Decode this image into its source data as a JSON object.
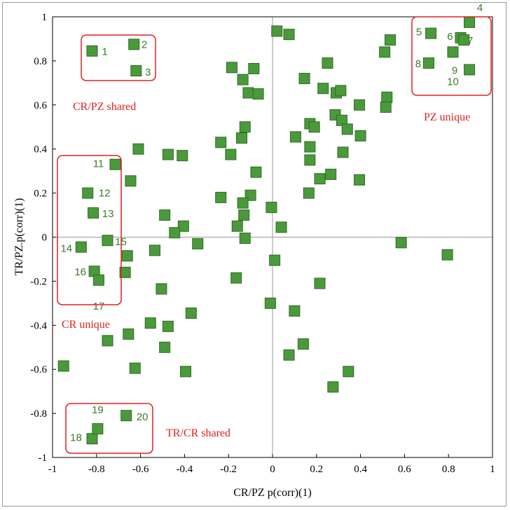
{
  "chart_data": {
    "type": "scatter",
    "title": "",
    "xlabel": "CR/PZ p(corr)(1)",
    "ylabel": "TR/PZ.p(corr)(1)",
    "xlim": [
      -1,
      1
    ],
    "ylim": [
      -1,
      1
    ],
    "x_ticks": [
      "-1",
      "-0.8",
      "-0.6",
      "-0.4",
      "-0.2",
      "0",
      "0.2",
      "0.4",
      "0.6",
      "0.8",
      "1"
    ],
    "y_ticks": [
      "1",
      "0.8",
      "0.6",
      "0.4",
      "0.2",
      "0",
      "-0.2",
      "-0.4",
      "-0.6",
      "-0.8",
      "-1"
    ],
    "marker_color": "#4a9a3c",
    "marker_edge": "#2f6b24",
    "reference_lines": [
      0,
      0
    ],
    "labeled_points": [
      {
        "label": "1",
        "x": -0.82,
        "y": 0.845
      },
      {
        "label": "2",
        "x": -0.63,
        "y": 0.875
      },
      {
        "label": "3",
        "x": -0.62,
        "y": 0.755
      },
      {
        "label": "5",
        "x": 0.72,
        "y": 0.925
      },
      {
        "label": "6",
        "x": 0.855,
        "y": 0.905
      },
      {
        "label": "7",
        "x": 0.87,
        "y": 0.895
      },
      {
        "label": "4",
        "x": 0.895,
        "y": 0.975
      },
      {
        "label": "8",
        "x": 0.71,
        "y": 0.79
      },
      {
        "label": "9",
        "x": 0.895,
        "y": 0.76
      },
      {
        "label": "10",
        "x": 0.82,
        "y": 0.84
      },
      {
        "label": "11",
        "x": -0.715,
        "y": 0.33
      },
      {
        "label": "12",
        "x": -0.84,
        "y": 0.2
      },
      {
        "label": "13",
        "x": -0.815,
        "y": 0.11
      },
      {
        "label": "14",
        "x": -0.87,
        "y": -0.045
      },
      {
        "label": "15",
        "x": -0.75,
        "y": -0.015
      },
      {
        "label": "16",
        "x": -0.81,
        "y": -0.155
      },
      {
        "label": "17",
        "x": -0.79,
        "y": -0.195
      },
      {
        "label": "18",
        "x": -0.82,
        "y": -0.915
      },
      {
        "label": "19",
        "x": -0.795,
        "y": -0.87
      },
      {
        "label": "20",
        "x": -0.665,
        "y": -0.81
      }
    ],
    "other_points": [
      {
        "x": 0.02,
        "y": 0.935
      },
      {
        "x": 0.075,
        "y": 0.92
      },
      {
        "x": 0.51,
        "y": 0.84
      },
      {
        "x": 0.535,
        "y": 0.895
      },
      {
        "x": 0.25,
        "y": 0.79
      },
      {
        "x": 0.145,
        "y": 0.72
      },
      {
        "x": 0.23,
        "y": 0.675
      },
      {
        "x": 0.29,
        "y": 0.655
      },
      {
        "x": 0.31,
        "y": 0.665
      },
      {
        "x": 0.52,
        "y": 0.635
      },
      {
        "x": 0.515,
        "y": 0.59
      },
      {
        "x": 0.395,
        "y": 0.6
      },
      {
        "x": 0.285,
        "y": 0.555
      },
      {
        "x": 0.315,
        "y": 0.53
      },
      {
        "x": 0.17,
        "y": 0.515
      },
      {
        "x": 0.19,
        "y": 0.5
      },
      {
        "x": 0.34,
        "y": 0.49
      },
      {
        "x": 0.4,
        "y": 0.46
      },
      {
        "x": 0.105,
        "y": 0.455
      },
      {
        "x": 0.17,
        "y": 0.41
      },
      {
        "x": 0.32,
        "y": 0.385
      },
      {
        "x": 0.17,
        "y": 0.35
      },
      {
        "x": 0.265,
        "y": 0.285
      },
      {
        "x": 0.215,
        "y": 0.265
      },
      {
        "x": 0.395,
        "y": 0.26
      },
      {
        "x": 0.165,
        "y": 0.2
      },
      {
        "x": -0.185,
        "y": 0.77
      },
      {
        "x": -0.135,
        "y": 0.715
      },
      {
        "x": -0.085,
        "y": 0.765
      },
      {
        "x": -0.11,
        "y": 0.655
      },
      {
        "x": -0.065,
        "y": 0.65
      },
      {
        "x": -0.125,
        "y": 0.5
      },
      {
        "x": -0.14,
        "y": 0.45
      },
      {
        "x": -0.235,
        "y": 0.43
      },
      {
        "x": -0.19,
        "y": 0.375
      },
      {
        "x": -0.075,
        "y": 0.295
      },
      {
        "x": -0.61,
        "y": 0.4
      },
      {
        "x": -0.475,
        "y": 0.375
      },
      {
        "x": -0.41,
        "y": 0.37
      },
      {
        "x": -0.645,
        "y": 0.255
      },
      {
        "x": -0.235,
        "y": 0.18
      },
      {
        "x": -0.1,
        "y": 0.19
      },
      {
        "x": -0.135,
        "y": 0.155
      },
      {
        "x": -0.13,
        "y": 0.1
      },
      {
        "x": -0.16,
        "y": 0.05
      },
      {
        "x": -0.125,
        "y": -0.005
      },
      {
        "x": -0.005,
        "y": 0.135
      },
      {
        "x": 0.04,
        "y": 0.045
      },
      {
        "x": -0.49,
        "y": 0.1
      },
      {
        "x": -0.405,
        "y": 0.05
      },
      {
        "x": -0.445,
        "y": 0.02
      },
      {
        "x": -0.34,
        "y": -0.03
      },
      {
        "x": -0.535,
        "y": -0.06
      },
      {
        "x": -0.66,
        "y": -0.085
      },
      {
        "x": -0.67,
        "y": -0.16
      },
      {
        "x": -0.505,
        "y": -0.235
      },
      {
        "x": -0.165,
        "y": -0.185
      },
      {
        "x": 0.01,
        "y": -0.105
      },
      {
        "x": 0.215,
        "y": -0.21
      },
      {
        "x": 0.585,
        "y": -0.025
      },
      {
        "x": 0.795,
        "y": -0.08
      },
      {
        "x": -0.01,
        "y": -0.3
      },
      {
        "x": 0.1,
        "y": -0.335
      },
      {
        "x": -0.37,
        "y": -0.345
      },
      {
        "x": -0.555,
        "y": -0.39
      },
      {
        "x": -0.475,
        "y": -0.405
      },
      {
        "x": -0.655,
        "y": -0.44
      },
      {
        "x": -0.75,
        "y": -0.47
      },
      {
        "x": -0.49,
        "y": -0.5
      },
      {
        "x": 0.14,
        "y": -0.485
      },
      {
        "x": 0.075,
        "y": -0.535
      },
      {
        "x": -0.95,
        "y": -0.585
      },
      {
        "x": -0.625,
        "y": -0.595
      },
      {
        "x": -0.395,
        "y": -0.61
      },
      {
        "x": 0.345,
        "y": -0.61
      },
      {
        "x": 0.275,
        "y": -0.68
      }
    ],
    "annotations": [
      "CR/PZ shared",
      "PZ unique",
      "CR unique",
      "TR/CR shared"
    ]
  }
}
